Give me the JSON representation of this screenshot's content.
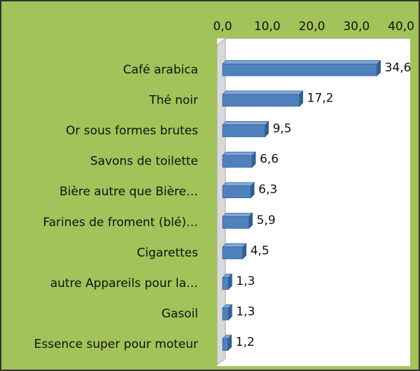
{
  "chart_data": {
    "type": "bar",
    "orientation": "horizontal",
    "three_d": true,
    "categories": [
      "Café arabica",
      "Thé noir",
      "Or sous formes brutes",
      "Savons de toilette",
      "Bière autre que Bière…",
      "Farines de froment (blé)…",
      "Cigarettes",
      "autre Appareils pour la…",
      "Gasoil",
      "Essence super pour moteur"
    ],
    "values": [
      34.6,
      17.2,
      9.5,
      6.6,
      6.3,
      5.9,
      4.5,
      1.3,
      1.3,
      1.2
    ],
    "value_labels": [
      "34,6",
      "17,2",
      "9,5",
      "6,6",
      "6,3",
      "5,9",
      "4,5",
      "1,3",
      "1,3",
      "1,2"
    ],
    "color": "#4f81bd",
    "xlim": [
      0,
      40
    ],
    "xticks": [
      {
        "value": 0,
        "label": "0,0"
      },
      {
        "value": 10,
        "label": "10,0"
      },
      {
        "value": 20,
        "label": "20,0"
      },
      {
        "value": 30,
        "label": "30,0"
      },
      {
        "value": 40,
        "label": "40,0"
      }
    ],
    "grid": false
  }
}
